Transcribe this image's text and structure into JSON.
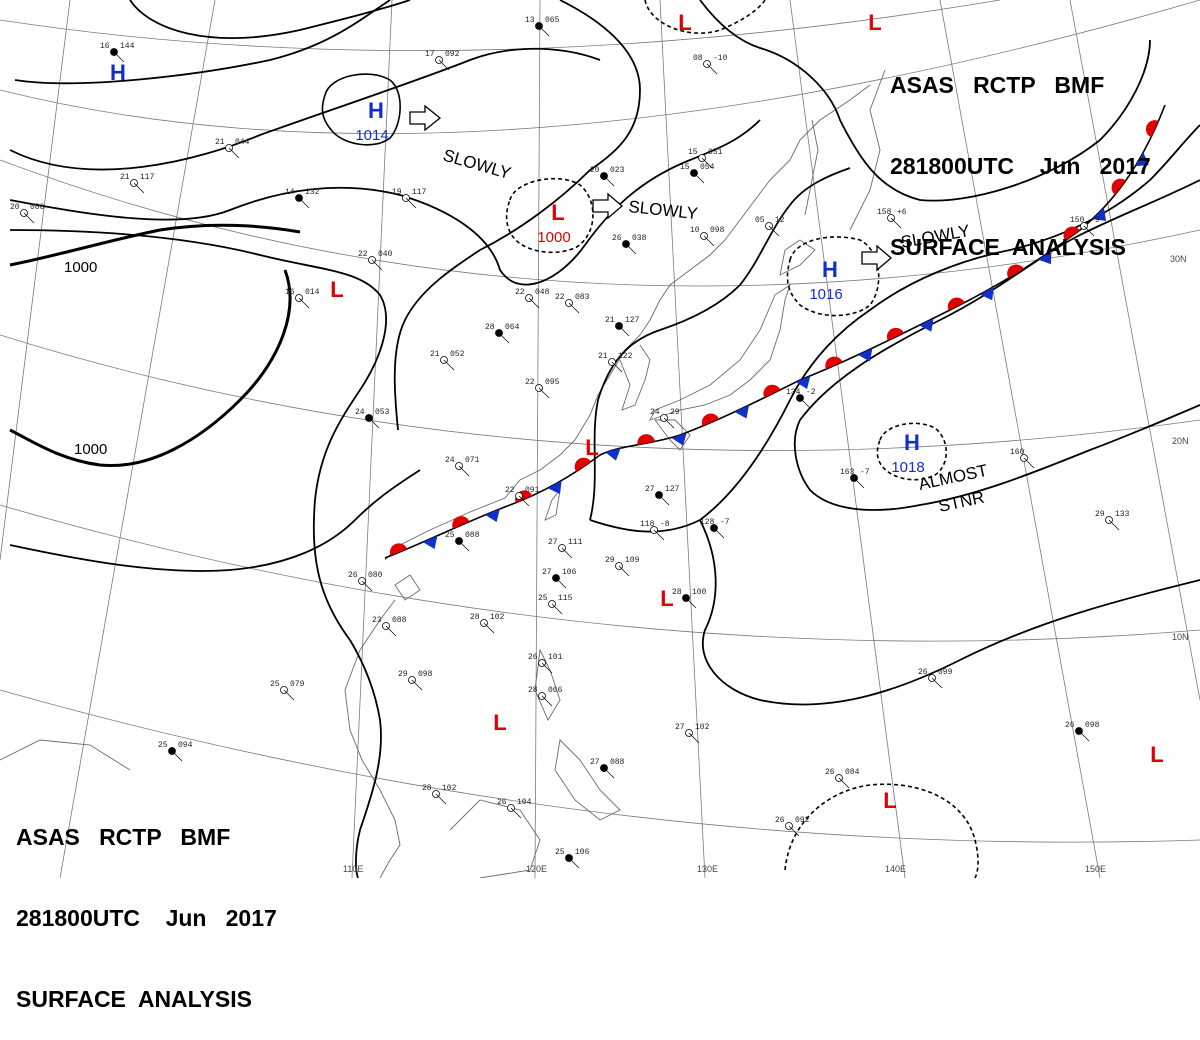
{
  "header_top": {
    "line1": "ASAS   RCTP   BMF",
    "line2": "281800UTC    Jun   2017",
    "line3": "SURFACE  ANALYSIS"
  },
  "header_bottom": {
    "line1": "ASAS   RCTP   BMF",
    "line2": "281800UTC    Jun   2017",
    "line3": "SURFACE  ANALYSIS"
  },
  "colors": {
    "high": "#1030c8",
    "low": "#e00000",
    "warm_front": "#e00000",
    "cold_front": "#1030c8",
    "isobar": "#000000",
    "grid": "#777777",
    "coast": "#666666"
  },
  "isobar_labels": [
    {
      "text": "1000"
    },
    {
      "text": "1000"
    }
  ],
  "pressure_systems": [
    {
      "type": "H",
      "value": "1014"
    },
    {
      "type": "H",
      "value": ""
    },
    {
      "type": "H",
      "value": "1016"
    },
    {
      "type": "H",
      "value": "1018"
    },
    {
      "type": "L",
      "value": "1000"
    },
    {
      "type": "L",
      "value": ""
    },
    {
      "type": "L",
      "value": ""
    },
    {
      "type": "L",
      "value": ""
    },
    {
      "type": "L",
      "value": ""
    },
    {
      "type": "L",
      "value": ""
    },
    {
      "type": "L",
      "value": ""
    },
    {
      "type": "L",
      "value": ""
    },
    {
      "type": "L",
      "value": ""
    }
  ],
  "movements": [
    {
      "text": "SLOWLY"
    },
    {
      "text": "SLOWLY"
    },
    {
      "text": "SLOWLY"
    },
    {
      "text": "ALMOST"
    },
    {
      "text": "STNR"
    }
  ],
  "lon_labels": [
    "110E",
    "120E",
    "130E",
    "140E",
    "150E"
  ],
  "lat_labels": [
    "30N",
    "20N",
    "10N"
  ],
  "station_plots": [
    {
      "t": "13",
      "p": "065"
    },
    {
      "t": "17",
      "p": "092"
    },
    {
      "t": "21",
      "p": "044"
    },
    {
      "t": "14",
      "p": "132"
    },
    {
      "t": "22",
      "p": "040"
    },
    {
      "t": "16",
      "p": "014"
    },
    {
      "t": "20",
      "p": "023"
    },
    {
      "t": "22",
      "p": "048"
    },
    {
      "t": "22",
      "p": "083"
    },
    {
      "t": "28",
      "p": "064"
    },
    {
      "t": "21",
      "p": "052"
    },
    {
      "t": "22",
      "p": "095"
    },
    {
      "t": "24",
      "p": "053"
    },
    {
      "t": "24",
      "p": "071"
    },
    {
      "t": "22",
      "p": "091"
    },
    {
      "t": "25",
      "p": "088"
    },
    {
      "t": "26",
      "p": "080"
    },
    {
      "t": "23",
      "p": "088"
    },
    {
      "t": "27",
      "p": "127"
    },
    {
      "t": "27",
      "p": "111"
    },
    {
      "t": "29",
      "p": "109"
    },
    {
      "t": "27",
      "p": "106"
    },
    {
      "t": "25",
      "p": "115"
    },
    {
      "t": "28",
      "p": "102"
    },
    {
      "t": "28",
      "p": "100"
    },
    {
      "t": "27",
      "p": "102"
    },
    {
      "t": "26",
      "p": "099"
    },
    {
      "t": "26",
      "p": "098"
    },
    {
      "t": "25",
      "p": "079"
    },
    {
      "t": "29",
      "p": "098"
    },
    {
      "t": "25",
      "p": "094"
    },
    {
      "t": "28",
      "p": "102"
    },
    {
      "t": "26",
      "p": "104"
    },
    {
      "t": "25",
      "p": "106"
    },
    {
      "t": "26",
      "p": "084"
    },
    {
      "t": "26",
      "p": "092"
    },
    {
      "t": "27",
      "p": "088"
    },
    {
      "t": "26",
      "p": "101"
    },
    {
      "t": "28",
      "p": "066"
    },
    {
      "t": "163",
      "p": "-7"
    },
    {
      "t": "160",
      "p": ""
    },
    {
      "t": "29",
      "p": "133"
    },
    {
      "t": "134",
      "p": "-2"
    },
    {
      "t": "158",
      "p": "+6"
    },
    {
      "t": "150",
      "p": "-9"
    },
    {
      "t": "15",
      "p": "054"
    },
    {
      "t": "10",
      "p": "098"
    },
    {
      "t": "15",
      "p": "051"
    },
    {
      "t": "128",
      "p": "-7"
    },
    {
      "t": "118",
      "p": "-8"
    },
    {
      "t": "24",
      "p": "29"
    },
    {
      "t": "21",
      "p": "127"
    },
    {
      "t": "21",
      "p": "122"
    },
    {
      "t": "19",
      "p": "117"
    },
    {
      "t": "16",
      "p": "144"
    },
    {
      "t": "20",
      "p": "086"
    },
    {
      "t": "21",
      "p": "117"
    },
    {
      "t": "26",
      "p": "038"
    },
    {
      "t": "08",
      "p": "-10"
    },
    {
      "t": "05",
      "p": "12"
    }
  ]
}
